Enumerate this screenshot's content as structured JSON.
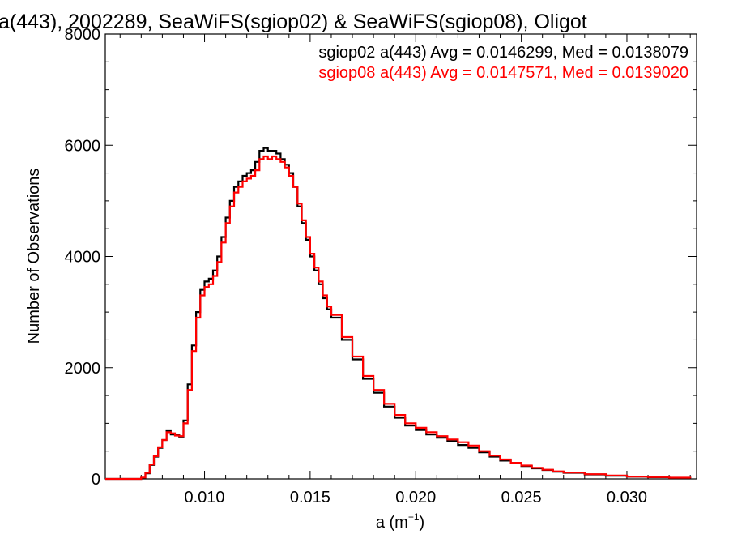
{
  "chart_data": {
    "type": "line",
    "title": "a(443), 2002289, SeaWiFS(sgiop02) & SeaWiFS(sgiop08), Oligot",
    "xlabel": "a (m",
    "xlabel_superscript": "−1",
    "xlabel_suffix": ")",
    "ylabel": "Number of Observations",
    "xlim": [
      0.0053,
      0.0333
    ],
    "ylim": [
      0,
      8000
    ],
    "x_ticks": [
      0.01,
      0.015,
      0.02,
      0.025,
      0.03
    ],
    "x_tick_labels": [
      "0.010",
      "0.015",
      "0.020",
      "0.025",
      "0.030"
    ],
    "y_ticks": [
      0,
      2000,
      4000,
      6000,
      8000
    ],
    "y_tick_labels": [
      "0",
      "2000",
      "4000",
      "6000",
      "8000"
    ],
    "grid": false,
    "legend_position": "top-right",
    "legend": [
      {
        "text": "sgiop02 a(443) Avg = 0.0146299, Med = 0.0138079",
        "color": "#000000"
      },
      {
        "text": "sgiop08 a(443) Avg = 0.0147571, Med = 0.0139020",
        "color": "#ff0000"
      }
    ],
    "series": [
      {
        "color": "#000000",
        "x": [
          0.0053,
          0.0066,
          0.007,
          0.0072,
          0.0074,
          0.0076,
          0.0078,
          0.008,
          0.0082,
          0.0084,
          0.0086,
          0.0088,
          0.009,
          0.0092,
          0.0094,
          0.0096,
          0.0098,
          0.01,
          0.0102,
          0.0104,
          0.0106,
          0.0108,
          0.011,
          0.0112,
          0.0114,
          0.0116,
          0.0118,
          0.012,
          0.0122,
          0.0124,
          0.0126,
          0.0128,
          0.013,
          0.0132,
          0.0134,
          0.0136,
          0.0138,
          0.014,
          0.0142,
          0.0144,
          0.0146,
          0.0148,
          0.015,
          0.0152,
          0.0154,
          0.0156,
          0.0158,
          0.016,
          0.0165,
          0.017,
          0.0175,
          0.018,
          0.0185,
          0.019,
          0.0195,
          0.02,
          0.0205,
          0.021,
          0.0215,
          0.022,
          0.0225,
          0.023,
          0.0235,
          0.024,
          0.0245,
          0.025,
          0.0255,
          0.026,
          0.0265,
          0.027,
          0.028,
          0.029,
          0.03,
          0.031,
          0.032,
          0.033
        ],
        "values": [
          0,
          0,
          20,
          100,
          250,
          400,
          560,
          700,
          860,
          800,
          790,
          760,
          1050,
          1700,
          2400,
          3000,
          3400,
          3550,
          3600,
          3750,
          4000,
          4350,
          4700,
          5000,
          5250,
          5350,
          5450,
          5500,
          5550,
          5700,
          5900,
          5950,
          5900,
          5900,
          5850,
          5750,
          5650,
          5500,
          5250,
          4900,
          4600,
          4300,
          4000,
          3750,
          3500,
          3250,
          3050,
          2900,
          2500,
          2150,
          1800,
          1550,
          1300,
          1100,
          960,
          880,
          800,
          740,
          680,
          610,
          560,
          480,
          400,
          330,
          280,
          230,
          190,
          160,
          130,
          110,
          80,
          55,
          40,
          30,
          20,
          10
        ]
      },
      {
        "color": "#ff0000",
        "x": [
          0.0053,
          0.0066,
          0.007,
          0.0072,
          0.0074,
          0.0076,
          0.0078,
          0.008,
          0.0082,
          0.0084,
          0.0086,
          0.0088,
          0.009,
          0.0092,
          0.0094,
          0.0096,
          0.0098,
          0.01,
          0.0102,
          0.0104,
          0.0106,
          0.0108,
          0.011,
          0.0112,
          0.0114,
          0.0116,
          0.0118,
          0.012,
          0.0122,
          0.0124,
          0.0126,
          0.0128,
          0.013,
          0.0132,
          0.0134,
          0.0136,
          0.0138,
          0.014,
          0.0142,
          0.0144,
          0.0146,
          0.0148,
          0.015,
          0.0152,
          0.0154,
          0.0156,
          0.0158,
          0.016,
          0.0165,
          0.017,
          0.0175,
          0.018,
          0.0185,
          0.019,
          0.0195,
          0.02,
          0.0205,
          0.021,
          0.0215,
          0.022,
          0.0225,
          0.023,
          0.0235,
          0.024,
          0.0245,
          0.025,
          0.0255,
          0.026,
          0.0265,
          0.027,
          0.028,
          0.029,
          0.03,
          0.031,
          0.032,
          0.033
        ],
        "values": [
          0,
          0,
          25,
          110,
          260,
          410,
          570,
          700,
          840,
          820,
          780,
          770,
          1000,
          1600,
          2300,
          2900,
          3300,
          3450,
          3500,
          3650,
          3900,
          4250,
          4600,
          4900,
          5150,
          5250,
          5350,
          5400,
          5450,
          5550,
          5750,
          5800,
          5750,
          5800,
          5750,
          5700,
          5600,
          5450,
          5250,
          4950,
          4650,
          4350,
          4050,
          3800,
          3550,
          3300,
          3100,
          2950,
          2550,
          2200,
          1850,
          1600,
          1350,
          1150,
          1000,
          920,
          840,
          770,
          710,
          660,
          600,
          500,
          420,
          350,
          290,
          240,
          200,
          165,
          135,
          115,
          85,
          60,
          42,
          32,
          22,
          12
        ]
      }
    ]
  }
}
